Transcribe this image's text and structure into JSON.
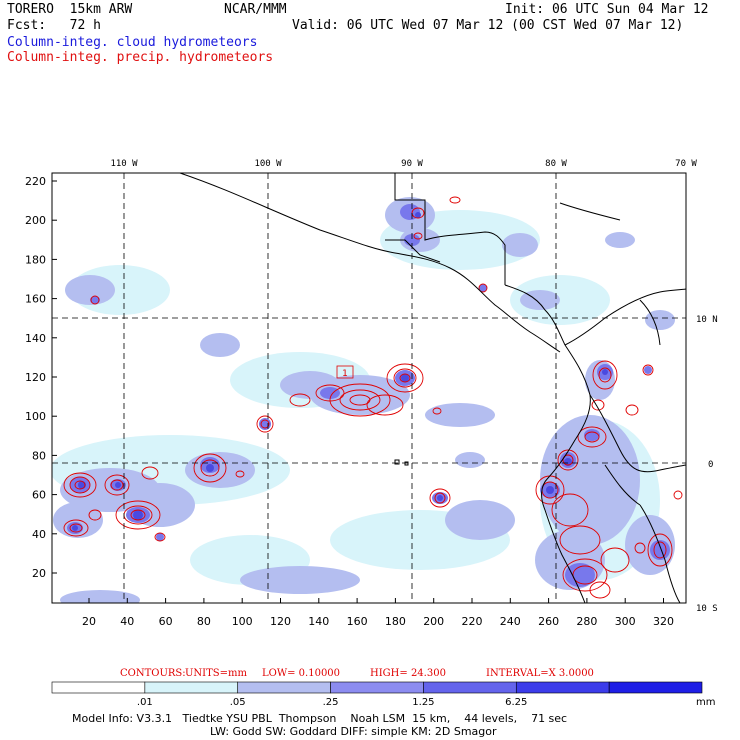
{
  "header": {
    "model": "TORERO  15km ARW",
    "org": "NCAR/MMM",
    "init": "Init: 06 UTC Sun 04 Mar 12",
    "fcst": "Fcst:   72 h",
    "valid": "Valid: 06 UTC Wed 07 Mar 12 (00 CST Wed 07 Mar 12)",
    "field1": "Column-integ. cloud hydrometeors",
    "field2": "Column-integ. precip. hydrometeors"
  },
  "map": {
    "lon_labels": [
      "110 W",
      "100 W",
      "90 W",
      "80 W",
      "70 W"
    ],
    "lat_labels": [
      "10 N",
      "0",
      "10 S"
    ],
    "y_ticks": [
      "220",
      "200",
      "180",
      "160",
      "140",
      "120",
      "100",
      "80",
      "60",
      "40",
      "20"
    ],
    "x_ticks": [
      "20",
      "40",
      "60",
      "80",
      "100",
      "120",
      "140",
      "160",
      "180",
      "200",
      "220",
      "240",
      "260",
      "280",
      "300",
      "320"
    ],
    "marker": "1",
    "colors": {
      "cloud_light": "#d8f4fa",
      "cloud_mid": "#b4bef0",
      "cloud_strong": "#7878ec",
      "cloud_core": "#4a4ae0",
      "precip_contour": "#e00000"
    }
  },
  "contours": {
    "label": "CONTOURS:",
    "units": "UNITS=mm",
    "low": "LOW= 0.10000",
    "high": "HIGH=  24.300",
    "interval": "INTERVAL=X  3.0000"
  },
  "colorbar": {
    "ticks": [
      ".01",
      ".05",
      ".25",
      "1.25",
      "6.25"
    ],
    "unit": "mm",
    "colors": [
      "#ffffff",
      "#d8f4fa",
      "#b4bef0",
      "#8c8cf0",
      "#6464ec",
      "#3c3cea",
      "#1e1ee6"
    ]
  },
  "footer": {
    "line1": "Model Info: V3.3.1   Tiedtke YSU PBL  Thompson    Noah LSM  15 km,    44 levels,    71 sec",
    "line2": "LW: Godd SW: Goddard DIFF: simple KM: 2D Smagor"
  }
}
